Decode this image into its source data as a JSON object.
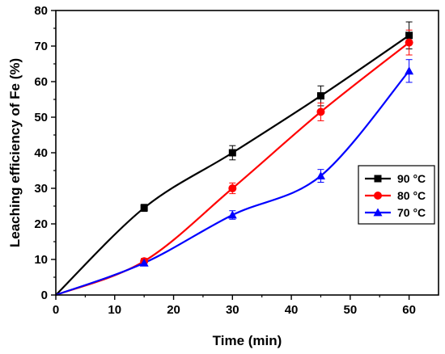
{
  "chart_data": {
    "type": "line",
    "xlabel": "Time (min)",
    "ylabel": "Leaching efficiency of Fe (%)",
    "xlim": [
      0,
      65
    ],
    "ylim": [
      0,
      80
    ],
    "xticks": [
      0,
      10,
      20,
      30,
      40,
      50,
      60
    ],
    "yticks": [
      0,
      10,
      20,
      30,
      40,
      50,
      60,
      70,
      80
    ],
    "grid": false,
    "legend_position": "center-right",
    "series": [
      {
        "name": "90 °C",
        "color": "#000000",
        "marker": "square",
        "x": [
          0,
          15,
          30,
          45,
          60
        ],
        "y": [
          0,
          24.5,
          40,
          56,
          73
        ],
        "err": [
          0,
          1,
          2,
          2.8,
          3.8
        ],
        "fit": "smooth"
      },
      {
        "name": "80 °C",
        "color": "#ff0000",
        "marker": "circle",
        "x": [
          0,
          15,
          30,
          45,
          60
        ],
        "y": [
          0,
          9.5,
          30,
          51.5,
          71
        ],
        "err": [
          0,
          0.8,
          1.5,
          2.5,
          3.5
        ],
        "fit": "smooth"
      },
      {
        "name": "70 °C",
        "color": "#0000ff",
        "marker": "triangle",
        "x": [
          0,
          15,
          30,
          45,
          60
        ],
        "y": [
          0,
          9,
          22.5,
          33.5,
          63
        ],
        "err": [
          0,
          0.8,
          1.2,
          1.8,
          3.2
        ],
        "fit": "smooth"
      }
    ]
  }
}
